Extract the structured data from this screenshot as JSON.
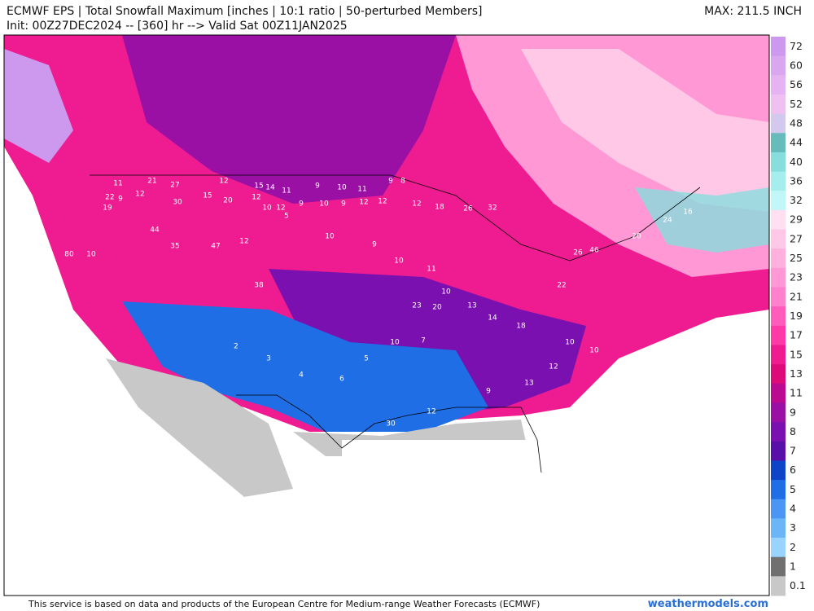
{
  "header": {
    "title": "ECMWF EPS | Total Snowfall Maximum [inches | 10:1 ratio | 50-perturbed Members]",
    "subtitle": "Init: 00Z27DEC2024 -- [360] hr --> Valid Sat 00Z11JAN2025",
    "max": "MAX: 211.5 INCH"
  },
  "colorbar": {
    "labels": [
      "72",
      "60",
      "56",
      "52",
      "48",
      "44",
      "40",
      "36",
      "32",
      "29",
      "27",
      "25",
      "23",
      "21",
      "19",
      "17",
      "15",
      "13",
      "11",
      "9",
      "8",
      "7",
      "6",
      "5",
      "4",
      "3",
      "2",
      "1",
      "0.1"
    ],
    "colors": [
      "#cc99ee",
      "#d9a6f0",
      "#e6b3f2",
      "#efc0f2",
      "#d3c8ee",
      "#66bbbb",
      "#88dddd",
      "#a6eeee",
      "#c2f7f7",
      "#ffe0f0",
      "#ffc8e6",
      "#ffb0dc",
      "#ff98d4",
      "#ff80cc",
      "#ff5cbc",
      "#ff3aa8",
      "#ee1c90",
      "#dd0a7a",
      "#bb0a90",
      "#9a10a4",
      "#7a10b0",
      "#5a10a8",
      "#1044c8",
      "#1f6ee6",
      "#4a96f2",
      "#6cb6f8",
      "#98d4ff",
      "#707070",
      "#c8c8c8"
    ]
  },
  "snow_totals": [
    "11",
    "21",
    "27",
    "22",
    "9",
    "19",
    "12",
    "30",
    "15",
    "12",
    "15",
    "14",
    "11",
    "9",
    "10",
    "11",
    "9",
    "8",
    "20",
    "12",
    "10",
    "12",
    "9",
    "10",
    "9",
    "12",
    "12",
    "12",
    "18",
    "26",
    "32",
    "80",
    "10",
    "44",
    "35",
    "47",
    "12",
    "38",
    "5",
    "10",
    "9",
    "10",
    "11",
    "10",
    "13",
    "23",
    "20",
    "14",
    "18",
    "22",
    "26",
    "46",
    "20",
    "24",
    "16",
    "10",
    "7",
    "5",
    "6",
    "4",
    "30",
    "12",
    "9",
    "13",
    "12",
    "10",
    "10",
    "2",
    "3"
  ],
  "footer": {
    "note": "This service is based on data and products of the European Centre for Medium-range Weather Forecasts (ECMWF)",
    "brand": "weathermodels.com"
  }
}
